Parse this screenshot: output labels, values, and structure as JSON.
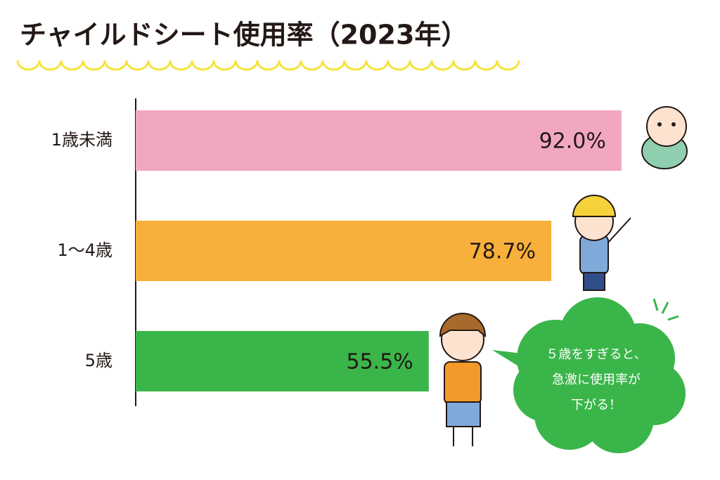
{
  "chart_data": {
    "type": "bar",
    "orientation": "horizontal",
    "title": "チャイルドシート使用率（2023年）",
    "categories": [
      "1歳未満",
      "1～4歳",
      "5歳"
    ],
    "values": [
      92.0,
      78.7,
      55.5
    ],
    "value_labels": [
      "92.0%",
      "78.7%",
      "55.5%"
    ],
    "colors": [
      "#f2a7c0",
      "#f7b03c",
      "#3ab54a"
    ],
    "xlim": [
      0,
      100
    ],
    "annotation": [
      "５歳をすぎると、",
      "急激に使用率が",
      "下がる！"
    ]
  }
}
